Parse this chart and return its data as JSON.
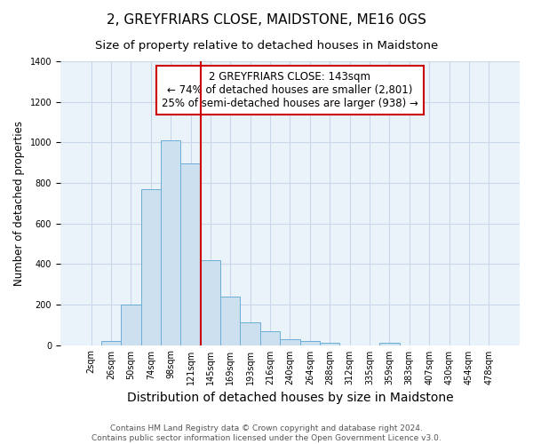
{
  "title": "2, GREYFRIARS CLOSE, MAIDSTONE, ME16 0GS",
  "subtitle": "Size of property relative to detached houses in Maidstone",
  "xlabel": "Distribution of detached houses by size in Maidstone",
  "ylabel": "Number of detached properties",
  "footnote1": "Contains HM Land Registry data © Crown copyright and database right 2024.",
  "footnote2": "Contains public sector information licensed under the Open Government Licence v3.0.",
  "bar_labels": [
    "2sqm",
    "26sqm",
    "50sqm",
    "74sqm",
    "98sqm",
    "121sqm",
    "145sqm",
    "169sqm",
    "193sqm",
    "216sqm",
    "240sqm",
    "264sqm",
    "288sqm",
    "312sqm",
    "335sqm",
    "359sqm",
    "383sqm",
    "407sqm",
    "430sqm",
    "454sqm",
    "478sqm"
  ],
  "bar_values": [
    0,
    20,
    200,
    770,
    1010,
    895,
    420,
    240,
    110,
    70,
    30,
    20,
    10,
    0,
    0,
    10,
    0,
    0,
    0,
    0,
    0
  ],
  "bar_color": "#cce0f0",
  "bar_edge_color": "#6aaed6",
  "red_line_index": 6,
  "annotation_text": "2 GREYFRIARS CLOSE: 143sqm\n← 74% of detached houses are smaller (2,801)\n25% of semi-detached houses are larger (938) →",
  "annotation_box_facecolor": "#ffffff",
  "annotation_box_edgecolor": "#cc0000",
  "ylim": [
    0,
    1400
  ],
  "yticks": [
    0,
    200,
    400,
    600,
    800,
    1000,
    1200,
    1400
  ],
  "grid_color": "#c8d8e8",
  "background_color": "#eaf2fa",
  "title_fontsize": 11,
  "subtitle_fontsize": 9.5,
  "xlabel_fontsize": 10,
  "ylabel_fontsize": 8.5,
  "tick_fontsize": 7,
  "annotation_fontsize": 8.5,
  "footnote_fontsize": 6.5
}
